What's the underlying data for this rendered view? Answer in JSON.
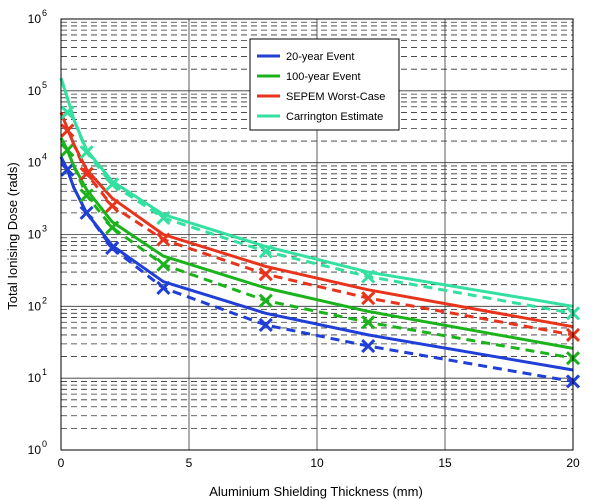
{
  "chart_data": {
    "type": "line",
    "xlabel": "Aluminium Shielding Thickness (mm)",
    "ylabel": "Total Ionising Dose (rads)",
    "xlim": [
      0,
      20
    ],
    "ylim": [
      1,
      1000000
    ],
    "yscale": "log",
    "x_ticks": [
      "0",
      "5",
      "10",
      "15",
      "20"
    ],
    "y_ticks": [
      {
        "base": "10",
        "exp": "0"
      },
      {
        "base": "10",
        "exp": "1"
      },
      {
        "base": "10",
        "exp": "2"
      },
      {
        "base": "10",
        "exp": "3"
      },
      {
        "base": "10",
        "exp": "4"
      },
      {
        "base": "10",
        "exp": "5"
      },
      {
        "base": "10",
        "exp": "6"
      }
    ],
    "grid": true,
    "legend_position": "top-right",
    "x_points": [
      0,
      0.25,
      0.5,
      1,
      2,
      4,
      8,
      12,
      20
    ],
    "series": [
      {
        "name": "20-year Event",
        "color": "#1f3fd6",
        "fit": [
          12000,
          8000,
          4500,
          2000,
          700,
          220,
          80,
          40,
          13
        ],
        "dashed": [
          12000,
          8000,
          4500,
          2000,
          650,
          180,
          55,
          28,
          9
        ],
        "markers": [
          8000,
          2000,
          650,
          180,
          55,
          28,
          9
        ],
        "marker_x": [
          0.25,
          1,
          2,
          4,
          8,
          12,
          20
        ]
      },
      {
        "name": "100-year Event",
        "color": "#1bb31b",
        "fit": [
          22000,
          15000,
          9000,
          4200,
          1500,
          500,
          180,
          85,
          26
        ],
        "dashed": [
          22000,
          15000,
          9000,
          3500,
          1250,
          380,
          120,
          60,
          19
        ],
        "markers": [
          15000,
          3500,
          1250,
          380,
          120,
          60,
          19
        ],
        "marker_x": [
          0.25,
          1,
          2,
          4,
          8,
          12,
          20
        ]
      },
      {
        "name": "SEPEM Worst-Case",
        "color": "#e8341c",
        "fit": [
          50000,
          30000,
          18000,
          8000,
          3200,
          1000,
          360,
          170,
          52
        ],
        "dashed": [
          50000,
          30000,
          18000,
          7000,
          2500,
          850,
          280,
          130,
          40
        ],
        "markers": [
          28000,
          7000,
          2500,
          850,
          280,
          130,
          40
        ],
        "marker_x": [
          0.25,
          1,
          2,
          4,
          8,
          12,
          20
        ]
      },
      {
        "name": "Carrington Estimate",
        "color": "#33e0a0",
        "fit": [
          150000,
          80000,
          40000,
          15000,
          5500,
          1900,
          680,
          300,
          100
        ],
        "dashed": [
          150000,
          80000,
          40000,
          14000,
          5000,
          1700,
          580,
          260,
          80
        ],
        "markers": [
          50000,
          14000,
          5000,
          1700,
          580,
          260,
          80
        ],
        "marker_x": [
          0.25,
          1,
          2,
          4,
          8,
          12,
          20
        ]
      }
    ]
  }
}
